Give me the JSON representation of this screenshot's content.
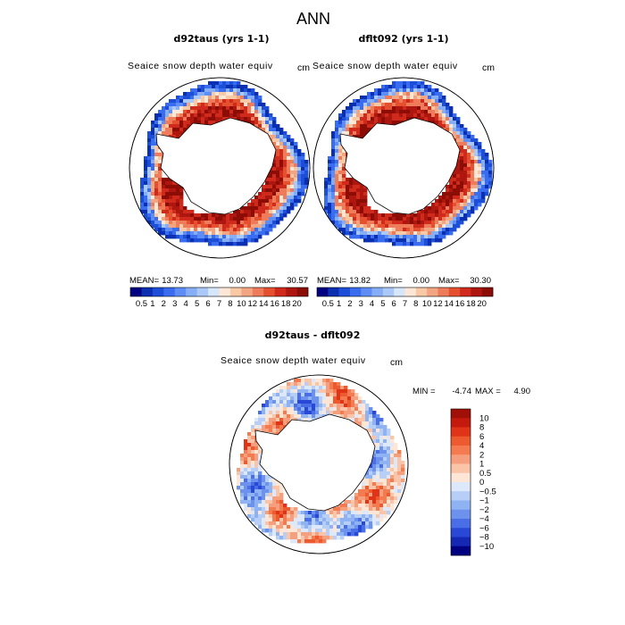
{
  "chart_data": {
    "type": "heatmap",
    "title": "ANN",
    "panels": [
      {
        "title": "d92taus (yrs 1-1)",
        "variable": "Seaice snow depth water equiv",
        "units": "cm",
        "stats": {
          "mean_label": "MEAN=",
          "mean": "13.73",
          "min_label": "Min=",
          "min": "0.00",
          "max_label": "Max=",
          "max": "30.57"
        }
      },
      {
        "title": "dflt092 (yrs 1-1)",
        "variable": "Seaice snow depth water equiv",
        "units": "cm",
        "stats": {
          "mean_label": "MEAN=",
          "mean": "13.82",
          "min_label": "Min=",
          "min": "0.00",
          "max_label": "Max=",
          "max": "30.30"
        }
      },
      {
        "title": "d92taus - dflt092",
        "variable": "Seaice snow depth water equiv",
        "units": "cm",
        "stats": {
          "min_label": "MIN =",
          "min": "-4.74",
          "max_label": "MAX =",
          "max": "4.90"
        }
      }
    ],
    "colorbar_abs": {
      "labels": [
        "0.5",
        "1",
        "2",
        "3",
        "4",
        "5",
        "6",
        "7",
        "8",
        "10",
        "12",
        "14",
        "16",
        "18",
        "20"
      ],
      "colors": [
        "#000080",
        "#0a2fb0",
        "#1c4ed8",
        "#3a6cf0",
        "#5e8ef5",
        "#86aef7",
        "#aac8f8",
        "#d6e6fb",
        "#fde7d6",
        "#f9c9a6",
        "#f3a582",
        "#ee7b5a",
        "#e5502f",
        "#cf2a1b",
        "#ae1710",
        "#8c0c06"
      ]
    },
    "colorbar_diff": {
      "labels": [
        "10",
        "8",
        "6",
        "4",
        "2",
        "1",
        "0.5",
        "0",
        "-0.5",
        "-1",
        "-2",
        "-4",
        "-6",
        "-8",
        "-10"
      ],
      "colors": [
        "#a01008",
        "#c41a0e",
        "#df3418",
        "#ee5a30",
        "#f47a50",
        "#f69f7e",
        "#f9c4a8",
        "#fde6d6",
        "#dde9fb",
        "#b7cef7",
        "#8fb2f3",
        "#6c92ed",
        "#4a6ee6",
        "#2a48d6",
        "#1428b4",
        "#000080"
      ]
    }
  }
}
